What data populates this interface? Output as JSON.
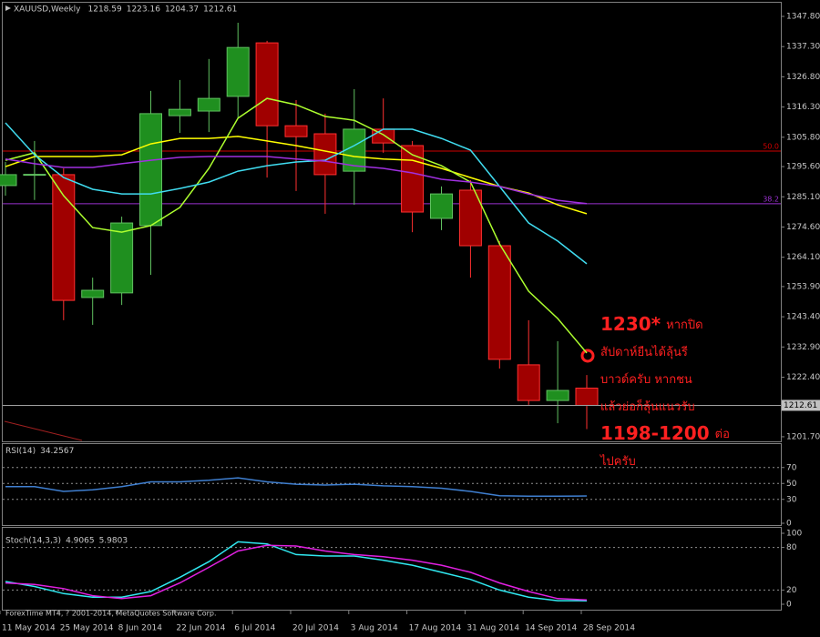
{
  "chart_data": [
    {
      "type": "candlestick",
      "title": "XAUUSD,Weekly",
      "categories": [
        "11 May 2014",
        null,
        "25 May 2014",
        null,
        "8 Jun 2014",
        null,
        "22 Jun 2014",
        null,
        "6 Jul 2014",
        null,
        "20 Jul 2014",
        null,
        "3 Aug 2014",
        null,
        "17 Aug 2014",
        null,
        "31 Aug 2014",
        null,
        "14 Sep 2014",
        null,
        "28 Sep 2014"
      ],
      "open": [
        1289.0,
        1292.6,
        1292.8,
        1250.1,
        1251.7,
        1275.1,
        1313.3,
        1314.9,
        1320.0,
        1338.6,
        1309.8,
        1307.0,
        1294.0,
        1308.6,
        1302.9,
        1277.6,
        1287.4,
        1268.1,
        1226.7,
        1214.3,
        1218.59
      ],
      "high": [
        1297.2,
        1304.5,
        1295.0,
        1257.0,
        1278.2,
        1321.9,
        1325.7,
        1333.0,
        1345.6,
        1339.3,
        1318.7,
        1314.0,
        1322.5,
        1319.3,
        1304.5,
        1288.7,
        1290.9,
        1269.7,
        1242.2,
        1234.9,
        1223.16
      ],
      "low": [
        1285.5,
        1284.0,
        1242.2,
        1240.6,
        1247.5,
        1258.0,
        1307.3,
        1307.6,
        1312.4,
        1291.8,
        1287.1,
        1279.2,
        1282.3,
        1300.4,
        1272.8,
        1273.5,
        1257.0,
        1225.4,
        1212.8,
        1206.4,
        1204.37
      ],
      "close": [
        1292.8,
        1292.9,
        1249.1,
        1252.6,
        1276.0,
        1314.0,
        1315.5,
        1319.3,
        1337.0,
        1309.8,
        1306.0,
        1292.8,
        1308.6,
        1303.8,
        1279.8,
        1286.1,
        1268.1,
        1228.6,
        1214.3,
        1217.8,
        1212.61
      ],
      "up_color": "#1f8f1f",
      "down_color": "#a00000",
      "series": [
        {
          "color": "#ffff00",
          "values": [
            1295.6,
            1299.1,
            1299.1,
            1299.1,
            1299.7,
            1303.5,
            1305.4,
            1305.4,
            1306.1,
            1304.5,
            1302.9,
            1301.0,
            1299.1,
            1298.2,
            1297.8,
            1295.0,
            1291.8,
            1288.7,
            1286.4,
            1282.3,
            1279.2
          ]
        },
        {
          "color": "#adff2f",
          "values": [
            1297.8,
            1300.4,
            1285.5,
            1274.4,
            1272.8,
            1275.1,
            1281.4,
            1295.0,
            1312.4,
            1319.3,
            1317.1,
            1313.0,
            1311.7,
            1306.7,
            1299.7,
            1295.9,
            1290.2,
            1268.7,
            1252.3,
            1242.8,
            1230.8
          ]
        },
        {
          "color": "#40dcf0",
          "values": [
            1310.8,
            1299.7,
            1291.8,
            1287.7,
            1286.1,
            1286.1,
            1288.0,
            1290.2,
            1294.0,
            1295.9,
            1297.2,
            1297.8,
            1302.9,
            1308.6,
            1308.6,
            1305.4,
            1301.3,
            1288.7,
            1276.0,
            1269.7,
            1261.8
          ]
        },
        {
          "color": "#a030e0",
          "values": [
            1298.2,
            1296.6,
            1295.3,
            1295.3,
            1296.6,
            1297.8,
            1298.8,
            1299.1,
            1299.1,
            1299.1,
            1298.2,
            1297.5,
            1295.9,
            1295.0,
            1293.4,
            1291.2,
            1290.2,
            1288.7,
            1286.1,
            1283.9,
            1282.7
          ]
        }
      ],
      "fib_levels": [
        {
          "value": 1301.0,
          "label": "50.0",
          "color": "#d00000"
        },
        {
          "value": 1282.7,
          "label": "38.2",
          "color": "#9a30d0"
        }
      ],
      "ylim": [
        1200.1,
        1353.5
      ],
      "yticks": [
        {
          "value": 1347.8,
          "label": "1347.80"
        },
        {
          "value": 1337.3,
          "label": "1337.30"
        },
        {
          "value": 1326.8,
          "label": "1326.80"
        },
        {
          "value": 1316.3,
          "label": "1316.30"
        },
        {
          "value": 1305.8,
          "label": "1305.80"
        },
        {
          "value": 1295.6,
          "label": "1295.60"
        },
        {
          "value": 1285.1,
          "label": "1285.10"
        },
        {
          "value": 1274.6,
          "label": "1274.60"
        },
        {
          "value": 1264.1,
          "label": "1264.10"
        },
        {
          "value": 1253.9,
          "label": "1253.90"
        },
        {
          "value": 1243.4,
          "label": "1243.40"
        },
        {
          "value": 1232.9,
          "label": "1232.90"
        },
        {
          "value": 1222.4,
          "label": "1222.40"
        },
        {
          "value": 1201.7,
          "label": "1201.70"
        }
      ],
      "annotation": [
        [
          "1230*",
          "หากปิด"
        ],
        [
          "สัปดาห์ยืนได้ลุ้นรี"
        ],
        [
          "บาวด์ครับ  หากชน"
        ],
        [
          "แล้วย่อก็ลุ้นแนวรับ"
        ],
        [
          "1198-1200",
          "ต่อ"
        ],
        [
          "ไปครับ"
        ]
      ]
    },
    {
      "type": "line",
      "title": "RSI(14)",
      "series": [
        {
          "color": "#3f7fd0",
          "values": [
            46,
            46,
            40,
            42,
            46,
            52,
            52,
            54,
            57,
            52,
            49,
            48,
            49,
            47,
            46,
            44,
            40,
            34.6,
            34,
            34,
            34.2567
          ]
        }
      ],
      "ylim": [
        0,
        100
      ],
      "yticks": [
        70,
        50,
        30,
        0
      ],
      "levels": [
        70,
        50,
        30
      ]
    },
    {
      "type": "line",
      "title": "Stoch(14,3,3)",
      "series": [
        {
          "color": "#30e8f0",
          "values": [
            32,
            25,
            15,
            10,
            10,
            18,
            38,
            60,
            88,
            85,
            70,
            68,
            68,
            62,
            55,
            45,
            35,
            20,
            10,
            5,
            4.9065
          ]
        },
        {
          "color": "#e020e0",
          "values": [
            30,
            28,
            22,
            12,
            8,
            12,
            30,
            52,
            75,
            83,
            82,
            75,
            70,
            67,
            62,
            55,
            45,
            30,
            18,
            8,
            5.9803
          ]
        }
      ],
      "ylim": [
        0,
        100
      ],
      "yticks": [
        100,
        80,
        20,
        0
      ],
      "levels": [
        80,
        20
      ]
    }
  ],
  "footer": "ForexTime MT4, ? 2001-2014, MetaQuotes Software Corp."
}
